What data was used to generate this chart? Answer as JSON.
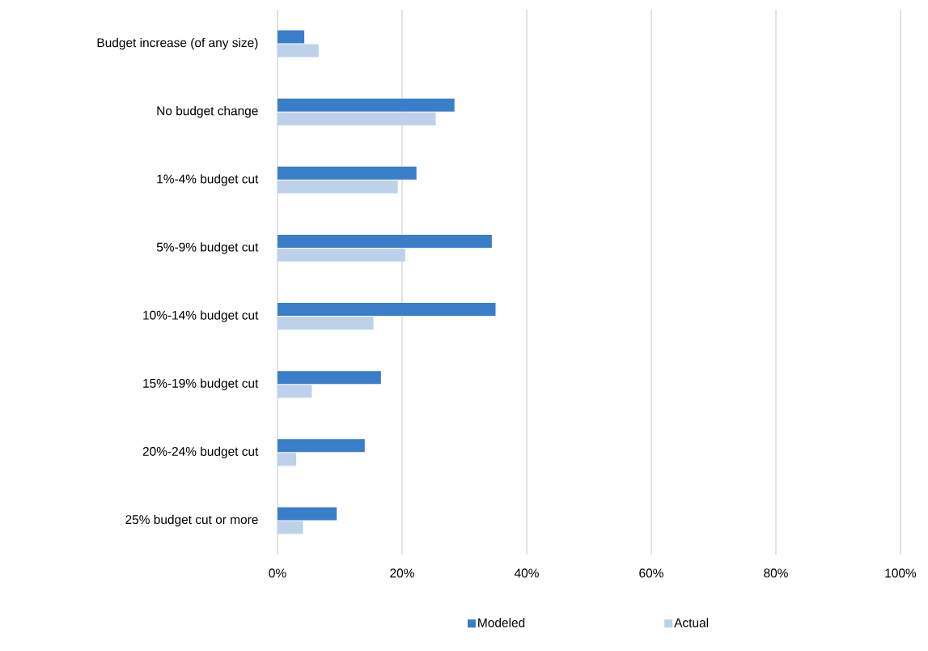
{
  "chart_data": {
    "type": "bar",
    "orientation": "horizontal",
    "categories": [
      "Budget increase (of any size)",
      "No budget change",
      "1%-4% budget cut",
      "5%-9% budget cut",
      "10%-14% budget cut",
      "15%-19% budget cut",
      "20%-24% budget cut",
      "25% budget cut or more"
    ],
    "series": [
      {
        "name": "Modeled",
        "color": "#3a7dc9",
        "values": [
          4.3,
          28.4,
          22.3,
          34.4,
          35.0,
          16.6,
          14.0,
          9.5
        ]
      },
      {
        "name": "Actual",
        "color": "#bdd1ea",
        "values": [
          6.6,
          25.4,
          19.3,
          20.5,
          15.4,
          5.5,
          3.0,
          4.1
        ]
      }
    ],
    "xlim": [
      0,
      100
    ],
    "xticks": [
      {
        "value": 0,
        "label": "0%"
      },
      {
        "value": 20,
        "label": "20%"
      },
      {
        "value": 40,
        "label": "40%"
      },
      {
        "value": 60,
        "label": "60%"
      },
      {
        "value": 80,
        "label": "80%"
      },
      {
        "value": 100,
        "label": "100%"
      }
    ],
    "grid": "x",
    "legend": "bottom"
  }
}
